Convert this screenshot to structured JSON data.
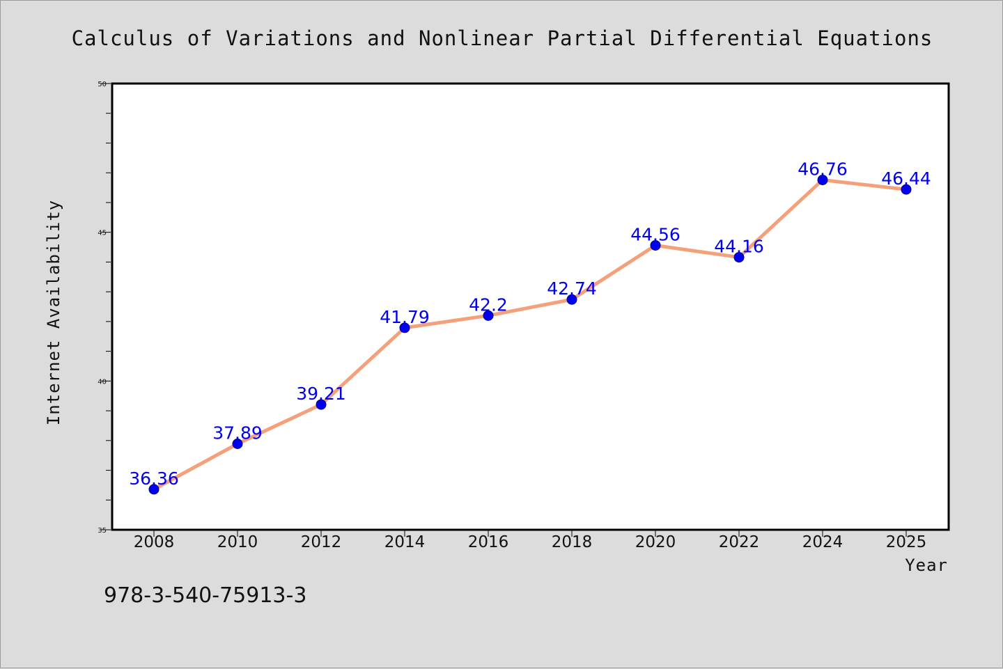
{
  "chart_data": {
    "type": "line",
    "title": "Calculus of Variations and Nonlinear Partial Differential Equations",
    "xlabel": "Year",
    "ylabel": "Internet Availability",
    "categories": [
      "2008",
      "2010",
      "2012",
      "2014",
      "2016",
      "2018",
      "2020",
      "2022",
      "2024",
      "2025"
    ],
    "series": [
      {
        "values": [
          36.36,
          37.89,
          39.21,
          41.79,
          42.2,
          42.74,
          44.56,
          44.16,
          46.76,
          46.44
        ]
      }
    ],
    "data_labels": [
      "36.36",
      "37.89",
      "39.21",
      "41.79",
      "42.2",
      "42.74",
      "44.56",
      "44.16",
      "46.76",
      "46.44"
    ],
    "ylim": [
      35,
      50
    ],
    "yticks": [
      "35",
      "40",
      "45",
      "50"
    ],
    "grid": false,
    "colors": {
      "line": "#f4a07a",
      "marker": "#0000ee",
      "label": "#0000ee"
    }
  },
  "footer_text": "978-3-540-75913-3"
}
